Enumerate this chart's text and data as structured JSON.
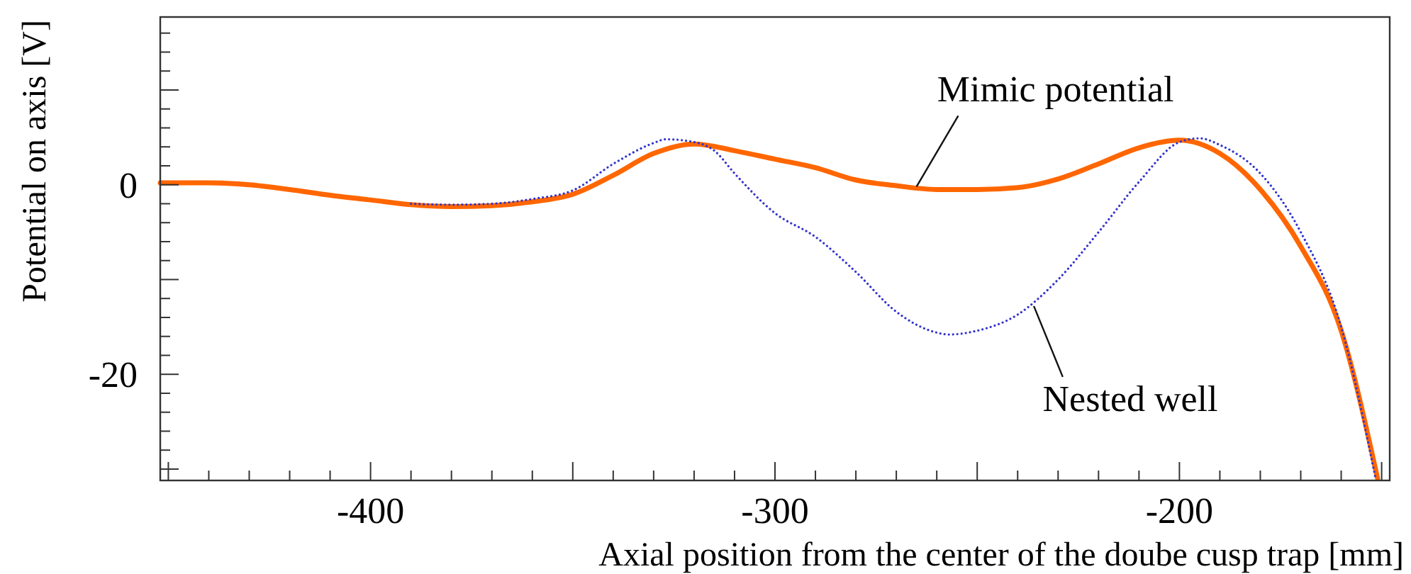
{
  "chart_data": {
    "type": "line",
    "xlabel": "Axial position from the center of the doube cusp trap [mm]",
    "ylabel": "Potential on axis [V]",
    "xlim": [
      -452,
      -148
    ],
    "ylim": [
      -31.2,
      17.7
    ],
    "xticks": [
      {
        "value": -450,
        "label": null
      },
      {
        "value": -440,
        "label": null
      },
      {
        "value": -430,
        "label": null
      },
      {
        "value": -420,
        "label": null
      },
      {
        "value": -410,
        "label": null
      },
      -400,
      {
        "value": -390,
        "label": null
      },
      {
        "value": -380,
        "label": null
      },
      {
        "value": -370,
        "label": null
      },
      {
        "value": -360,
        "label": null
      },
      {
        "value": -350,
        "label": null
      },
      {
        "value": -340,
        "label": null
      },
      {
        "value": -330,
        "label": null
      },
      {
        "value": -320,
        "label": null
      },
      {
        "value": -310,
        "label": null
      },
      -300,
      {
        "value": -290,
        "label": null
      },
      {
        "value": -280,
        "label": null
      },
      {
        "value": -270,
        "label": null
      },
      {
        "value": -260,
        "label": null
      },
      {
        "value": -250,
        "label": null
      },
      {
        "value": -240,
        "label": null
      },
      {
        "value": -230,
        "label": null
      },
      {
        "value": -220,
        "label": null
      },
      {
        "value": -210,
        "label": null
      },
      -200,
      {
        "value": -190,
        "label": null
      },
      {
        "value": -180,
        "label": null
      },
      {
        "value": -170,
        "label": null
      },
      {
        "value": -160,
        "label": null
      },
      {
        "value": -150,
        "label": null
      }
    ],
    "yticks": [
      {
        "value": -30,
        "label": null
      },
      {
        "value": -28,
        "label": null
      },
      {
        "value": -26,
        "label": null
      },
      {
        "value": -24,
        "label": null
      },
      {
        "value": -22,
        "label": null
      },
      -20,
      {
        "value": -18,
        "label": null
      },
      {
        "value": -16,
        "label": null
      },
      {
        "value": -14,
        "label": null
      },
      {
        "value": -12,
        "label": null
      },
      {
        "value": -10,
        "label": null
      },
      {
        "value": -8,
        "label": null
      },
      {
        "value": -6,
        "label": null
      },
      {
        "value": -4,
        "label": null
      },
      {
        "value": -2,
        "label": null
      },
      0,
      {
        "value": 2,
        "label": null
      },
      {
        "value": 4,
        "label": null
      },
      {
        "value": 6,
        "label": null
      },
      {
        "value": 8,
        "label": null
      },
      {
        "value": 10,
        "label": null
      },
      {
        "value": 12,
        "label": null
      },
      {
        "value": 14,
        "label": null
      },
      {
        "value": 16,
        "label": null
      }
    ],
    "grid": false,
    "series": [
      {
        "color": "#3333cc",
        "line_style": "dotted",
        "x": [
          -390,
          -380,
          -370,
          -360,
          -350,
          -340,
          -330,
          -327,
          -320,
          -315,
          -310,
          -300,
          -290,
          -280,
          -270,
          -260,
          -257,
          -250,
          -240,
          -230,
          -220,
          -210,
          -200,
          -195,
          -190,
          -180,
          -170,
          -160,
          -151.5
        ],
        "values": [
          -2,
          -2.1,
          -2,
          -1.5,
          -0.6,
          2.2,
          4.4,
          4.8,
          4.5,
          3.6,
          1.2,
          -3,
          -5.5,
          -9.2,
          -13.4,
          -15.6,
          -15.8,
          -15.4,
          -13.7,
          -10,
          -5,
          0.3,
          4.5,
          4.9,
          4.2,
          1.2,
          -5,
          -15,
          -31
        ]
      },
      {
        "color": "#ff6600",
        "line_style": "solid",
        "x": [
          -452,
          -440,
          -430,
          -420,
          -410,
          -400,
          -390,
          -380,
          -370,
          -360,
          -350,
          -340,
          -330,
          -320,
          -310,
          -300,
          -290,
          -280,
          -270,
          -260,
          -250,
          -240,
          -230,
          -220,
          -210,
          -200,
          -190,
          -180,
          -170,
          -160,
          -151
        ],
        "values": [
          0.2,
          0.2,
          0,
          -0.5,
          -1.1,
          -1.6,
          -2.1,
          -2.3,
          -2.2,
          -1.8,
          -1,
          1,
          3.3,
          4.3,
          3.6,
          2.7,
          1.8,
          0.5,
          -0.1,
          -0.5,
          -0.5,
          -0.3,
          0.6,
          2.2,
          3.9,
          4.7,
          3.3,
          -0.5,
          -6.5,
          -15.4,
          -31
        ]
      }
    ],
    "annotations": [
      {
        "text": "Mimic potential",
        "x": -265,
        "y": -0.2
      },
      {
        "text": "Nested well",
        "x": -236,
        "y": -12.8
      }
    ]
  }
}
